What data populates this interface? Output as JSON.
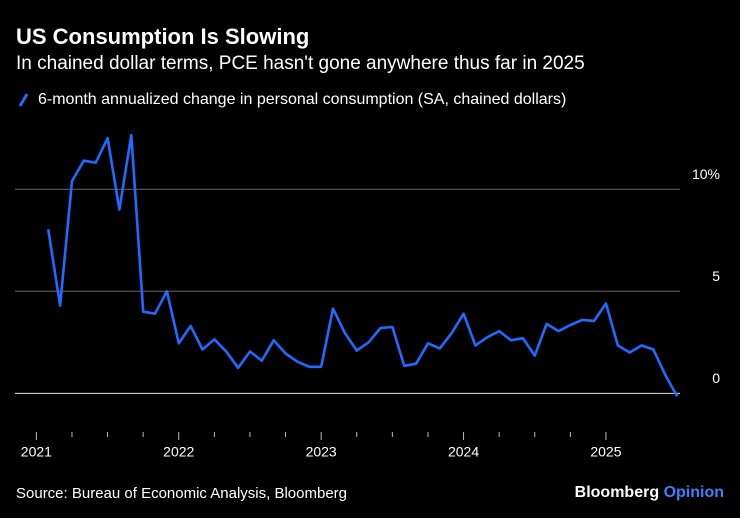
{
  "chart_data": {
    "type": "line",
    "title": "US Consumption Is Slowing",
    "subtitle": "In chained dollar terms, PCE hasn't gone anywhere thus far in 2025",
    "source": "Source: Bureau of Economic Analysis, Bloomberg",
    "branding": [
      "Bloomberg",
      "Opinion"
    ],
    "x": [
      2021.083,
      2021.167,
      2021.25,
      2021.333,
      2021.417,
      2021.5,
      2021.583,
      2021.667,
      2021.75,
      2021.833,
      2021.917,
      2022.0,
      2022.083,
      2022.167,
      2022.25,
      2022.333,
      2022.417,
      2022.5,
      2022.583,
      2022.667,
      2022.75,
      2022.833,
      2022.917,
      2023.0,
      2023.083,
      2023.167,
      2023.25,
      2023.333,
      2023.417,
      2023.5,
      2023.583,
      2023.667,
      2023.75,
      2023.833,
      2023.917,
      2024.0,
      2024.083,
      2024.167,
      2024.25,
      2024.333,
      2024.417,
      2024.5,
      2024.583,
      2024.667,
      2024.75,
      2024.833,
      2024.917,
      2025.0,
      2025.083,
      2025.167,
      2025.25,
      2025.333,
      2025.417,
      2025.5
    ],
    "series": [
      {
        "name": "6-month annualized change in personal consumption (SA, chained dollars)",
        "color": "#1f6bff",
        "values": [
          8.04,
          4.3,
          10.4,
          11.4,
          11.3,
          12.5,
          9.0,
          12.65,
          4.0,
          3.9,
          5.0,
          2.45,
          3.3,
          2.15,
          2.65,
          2.05,
          1.25,
          2.05,
          1.6,
          2.6,
          1.95,
          1.55,
          1.3,
          1.3,
          4.15,
          2.95,
          2.1,
          2.5,
          3.2,
          3.25,
          1.35,
          1.45,
          2.45,
          2.2,
          2.95,
          3.9,
          2.35,
          2.75,
          3.05,
          2.6,
          2.7,
          1.85,
          3.4,
          3.05,
          3.35,
          3.6,
          3.55,
          4.4,
          2.35,
          2.0,
          2.35,
          2.15,
          0.9,
          -0.15
        ]
      }
    ],
    "xlim": [
      2020.85,
      2025.52
    ],
    "xticks": [
      2021,
      2022,
      2023,
      2024,
      2025
    ],
    "ylim": [
      -1.6,
      13
    ],
    "yticks": [
      0,
      5,
      {
        "value": 10,
        "label": "10%"
      }
    ],
    "grid": true
  }
}
